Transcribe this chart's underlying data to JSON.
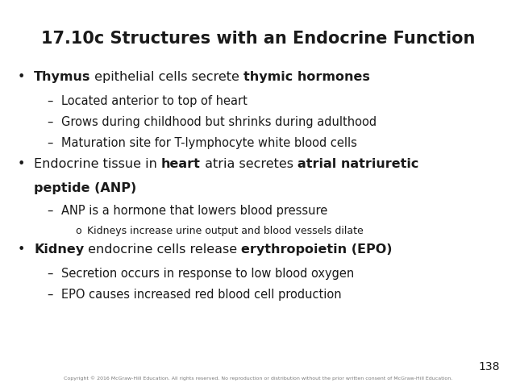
{
  "title": "17.10c Structures with an Endocrine Function",
  "background_color": "#ffffff",
  "text_color": "#1a1a1a",
  "title_fontsize": 15,
  "body_fontsize": 11.5,
  "sub_fontsize": 10.5,
  "subsub_fontsize": 9,
  "footer_text": "Copyright © 2016 McGraw-Hill Education. All rights reserved. No reproduction or distribution without the prior written consent of McGraw-Hill Education.",
  "page_number": "138",
  "content": [
    {
      "level": 0,
      "bullet": "•",
      "segments": [
        {
          "text": "Thymus",
          "bold": true
        },
        {
          "text": " epithelial cells secrete ",
          "bold": false
        },
        {
          "text": "thymic hormones",
          "bold": true
        }
      ],
      "extra_lines": []
    },
    {
      "level": 1,
      "bullet": "–",
      "segments": [
        {
          "text": "Located anterior to top of heart",
          "bold": false
        }
      ],
      "extra_lines": []
    },
    {
      "level": 1,
      "bullet": "–",
      "segments": [
        {
          "text": "Grows during childhood but shrinks during adulthood",
          "bold": false
        }
      ],
      "extra_lines": []
    },
    {
      "level": 1,
      "bullet": "–",
      "segments": [
        {
          "text": "Maturation site for T-lymphocyte white blood cells",
          "bold": false
        }
      ],
      "extra_lines": []
    },
    {
      "level": 0,
      "bullet": "•",
      "segments": [
        {
          "text": "Endocrine tissue in ",
          "bold": false
        },
        {
          "text": "heart",
          "bold": true
        },
        {
          "text": " atria secretes ",
          "bold": false
        },
        {
          "text": "atrial natriuretic",
          "bold": true
        }
      ],
      "extra_lines": [
        [
          {
            "text": "peptide (ANP)",
            "bold": true
          }
        ]
      ]
    },
    {
      "level": 1,
      "bullet": "–",
      "segments": [
        {
          "text": "ANP is a hormone that lowers blood pressure",
          "bold": false
        }
      ],
      "extra_lines": []
    },
    {
      "level": 2,
      "bullet": "o",
      "segments": [
        {
          "text": "Kidneys increase urine output and blood vessels dilate",
          "bold": false
        }
      ],
      "extra_lines": []
    },
    {
      "level": 0,
      "bullet": "•",
      "segments": [
        {
          "text": "Kidney",
          "bold": true
        },
        {
          "text": " endocrine cells release ",
          "bold": false
        },
        {
          "text": "erythropoietin (EPO)",
          "bold": true
        }
      ],
      "extra_lines": []
    },
    {
      "level": 1,
      "bullet": "–",
      "segments": [
        {
          "text": "Secretion occurs in response to low blood oxygen",
          "bold": false
        }
      ],
      "extra_lines": []
    },
    {
      "level": 1,
      "bullet": "–",
      "segments": [
        {
          "text": "EPO causes increased red blood cell production",
          "bold": false
        }
      ],
      "extra_lines": []
    }
  ]
}
